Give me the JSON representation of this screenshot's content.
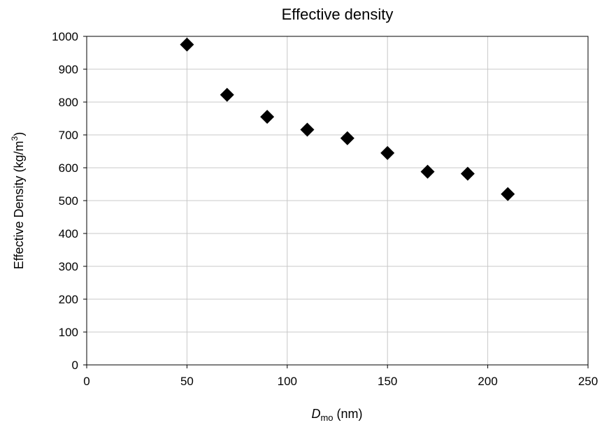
{
  "chart_data": {
    "type": "scatter",
    "title": "Effective density",
    "xlabel": {
      "main": "D",
      "sub": "mo",
      "suffix": " (nm)"
    },
    "ylabel": {
      "main": "Effective Density (kg/m",
      "sup": "3",
      "suffix": ")"
    },
    "xlim": [
      0,
      250
    ],
    "ylim": [
      0,
      1000
    ],
    "xticks": [
      0,
      50,
      100,
      150,
      200,
      250
    ],
    "yticks": [
      0,
      100,
      200,
      300,
      400,
      500,
      600,
      700,
      800,
      900,
      1000
    ],
    "grid": true,
    "marker": "diamond",
    "marker_color": "#000000",
    "series": [
      {
        "x": [
          50,
          70,
          90,
          110,
          130,
          150,
          170,
          190,
          210
        ],
        "y": [
          975,
          822,
          755,
          716,
          690,
          645,
          588,
          582,
          520
        ]
      }
    ]
  }
}
